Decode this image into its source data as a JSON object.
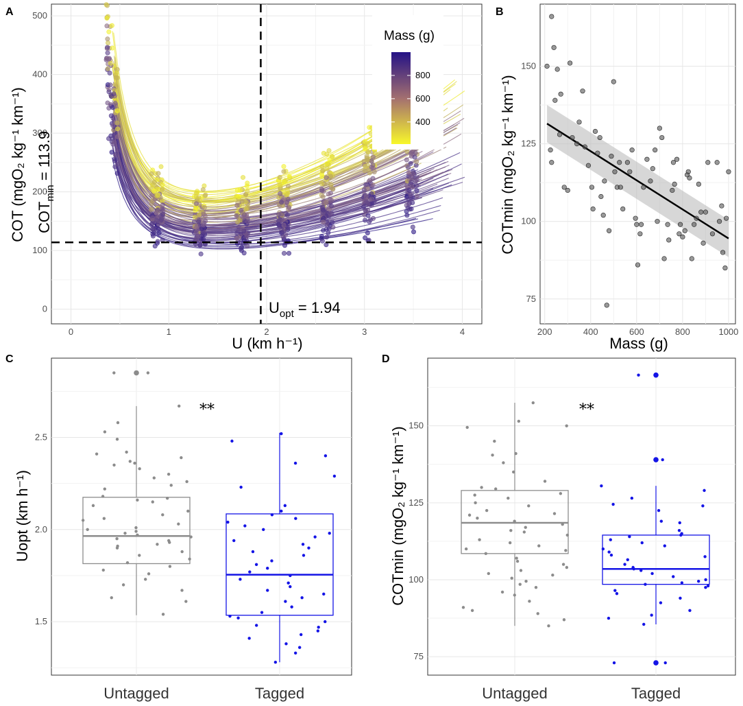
{
  "figure": {
    "panel_letters": [
      "A",
      "B",
      "C",
      "D"
    ]
  },
  "chart_data": [
    {
      "id": "A",
      "type": "scatter",
      "title": "",
      "xlabel": "U (km h⁻¹)",
      "ylabel": "COT (mgO₂ kg⁻¹ km⁻¹)",
      "xlim": [
        -0.2,
        4.2
      ],
      "ylim": [
        -25,
        520
      ],
      "x_ticks": [
        0,
        1,
        2,
        3,
        4
      ],
      "y_ticks": [
        0,
        100,
        200,
        300,
        400,
        500
      ],
      "grid": true,
      "legend": {
        "title": "Mass (g)",
        "ticks": [
          400,
          600,
          800
        ],
        "range": [
          210,
          1000
        ],
        "low_color": "#f8f82a",
        "mid_color": "#8b6a8a",
        "high_color": "#241286",
        "placement": "top-right"
      },
      "speed_levels": [
        0.42,
        0.88,
        1.32,
        1.75,
        2.18,
        2.62,
        3.05,
        3.48
      ],
      "hline": {
        "y": 113.9,
        "label": "COTmin = 113.9"
      },
      "vline": {
        "x": 1.94,
        "label": "Uopt = 1.94"
      },
      "annotations": {
        "cot_main": "COT",
        "cot_sub": "min",
        "cot_value": " = 113.9",
        "u_main": "U",
        "u_sub": "opt",
        "u_value": " = 1.94"
      },
      "n_curves": 90
    },
    {
      "id": "B",
      "type": "scatter",
      "title": "",
      "xlabel": "Mass (g)",
      "ylabel": "COTmin (mgO₂ kg⁻¹ km⁻¹)",
      "xlim": [
        180,
        1030
      ],
      "ylim": [
        67,
        170
      ],
      "x_ticks": [
        200,
        400,
        600,
        800,
        1000
      ],
      "y_ticks": [
        75,
        100,
        125,
        150
      ],
      "grid": true,
      "fit": {
        "x": [
          210,
          1000
        ],
        "y": [
          131.5,
          94.5
        ],
        "se_low": [
          125.5,
          88.5
        ],
        "se_high": [
          137.5,
          100.5
        ]
      },
      "points": [
        [
          210,
          150
        ],
        [
          230,
          166
        ],
        [
          240,
          156
        ],
        [
          255,
          149
        ],
        [
          265,
          128
        ],
        [
          225,
          123
        ],
        [
          230,
          119
        ],
        [
          245,
          139
        ],
        [
          270,
          141
        ],
        [
          285,
          111
        ],
        [
          300,
          110
        ],
        [
          310,
          151
        ],
        [
          320,
          127
        ],
        [
          340,
          125
        ],
        [
          350,
          132
        ],
        [
          365,
          142
        ],
        [
          375,
          124
        ],
        [
          390,
          118
        ],
        [
          405,
          111
        ],
        [
          410,
          104
        ],
        [
          420,
          129
        ],
        [
          430,
          122
        ],
        [
          440,
          127
        ],
        [
          445,
          108
        ],
        [
          455,
          102
        ],
        [
          460,
          113
        ],
        [
          470,
          73
        ],
        [
          480,
          97
        ],
        [
          490,
          121
        ],
        [
          500,
          145
        ],
        [
          505,
          116
        ],
        [
          515,
          111
        ],
        [
          525,
          119
        ],
        [
          530,
          111
        ],
        [
          540,
          104
        ],
        [
          560,
          119
        ],
        [
          570,
          116
        ],
        [
          580,
          123
        ],
        [
          595,
          101
        ],
        [
          600,
          99
        ],
        [
          605,
          86
        ],
        [
          615,
          96
        ],
        [
          620,
          99
        ],
        [
          630,
          111
        ],
        [
          645,
          120
        ],
        [
          660,
          113
        ],
        [
          670,
          117
        ],
        [
          680,
          123
        ],
        [
          690,
          100
        ],
        [
          700,
          130
        ],
        [
          710,
          127
        ],
        [
          720,
          88
        ],
        [
          735,
          99
        ],
        [
          740,
          94
        ],
        [
          755,
          110
        ],
        [
          760,
          119
        ],
        [
          765,
          112
        ],
        [
          775,
          120
        ],
        [
          785,
          96
        ],
        [
          790,
          99
        ],
        [
          800,
          95
        ],
        [
          810,
          97
        ],
        [
          820,
          115
        ],
        [
          825,
          116
        ],
        [
          830,
          114
        ],
        [
          840,
          88
        ],
        [
          850,
          99
        ],
        [
          860,
          101
        ],
        [
          870,
          112
        ],
        [
          880,
          103
        ],
        [
          890,
          93
        ],
        [
          900,
          103
        ],
        [
          910,
          119
        ],
        [
          930,
          96
        ],
        [
          950,
          119
        ],
        [
          960,
          100
        ],
        [
          970,
          105
        ],
        [
          975,
          90
        ],
        [
          985,
          85
        ],
        [
          990,
          101
        ],
        [
          1000,
          116
        ]
      ]
    },
    {
      "id": "C",
      "type": "box",
      "title": "",
      "xlabel": "",
      "ylabel": "Uopt (km h⁻¹)",
      "ylim": [
        1.21,
        2.93
      ],
      "y_ticks": [
        1.5,
        2.0,
        2.5
      ],
      "categories": [
        "Untagged",
        "Tagged"
      ],
      "significance": "**",
      "boxes": [
        {
          "name": "Untagged",
          "color": "#8c8c8c",
          "q1": 1.815,
          "median": 1.965,
          "q3": 2.175,
          "whisker_low": 1.535,
          "whisker_high": 2.67,
          "outliers": [
            2.85
          ]
        },
        {
          "name": "Tagged",
          "color": "#1414e6",
          "q1": 1.535,
          "median": 1.755,
          "q3": 2.085,
          "whisker_low": 1.28,
          "whisker_high": 2.525,
          "outliers": []
        }
      ],
      "points": [
        [
          2.85,
          2.67,
          2.53,
          2.58,
          2.42,
          2.39,
          2.41,
          2.36,
          2.35,
          2.37,
          2.33,
          2.3,
          2.28,
          2.26,
          2.24,
          2.22,
          2.18,
          2.17,
          2.16,
          2.15,
          2.13,
          2.1,
          2.08,
          2.06,
          2.05,
          2.03,
          2.01,
          2.0,
          1.99,
          1.98,
          1.97,
          1.96,
          1.95,
          1.94,
          1.93,
          1.92,
          1.91,
          1.9,
          1.88,
          1.86,
          1.84,
          1.82,
          1.8,
          1.78,
          1.76,
          1.73,
          1.7,
          1.67,
          1.63,
          1.61,
          1.54,
          2.85,
          2.49
        ],
        [
          2.52,
          2.48,
          2.4,
          2.36,
          2.29,
          2.23,
          2.13,
          2.1,
          2.08,
          2.06,
          2.04,
          2.02,
          2.0,
          1.98,
          1.96,
          1.94,
          1.92,
          1.9,
          1.88,
          1.86,
          1.83,
          1.81,
          1.79,
          1.77,
          1.75,
          1.73,
          1.71,
          1.69,
          1.67,
          1.65,
          1.63,
          1.61,
          1.58,
          1.55,
          1.53,
          1.52,
          1.5,
          1.48,
          1.47,
          1.45,
          1.43,
          1.41,
          1.38,
          1.36,
          1.33,
          1.28
        ]
      ]
    },
    {
      "id": "D",
      "type": "box",
      "title": "",
      "xlabel": "",
      "ylabel": "COTmin (mgO₂ kg⁻¹ km⁻¹)",
      "ylim": [
        69,
        172
      ],
      "y_ticks": [
        75,
        100,
        125,
        150
      ],
      "categories": [
        "Untagged",
        "Tagged"
      ],
      "significance": "**",
      "boxes": [
        {
          "name": "Untagged",
          "color": "#8c8c8c",
          "q1": 108.5,
          "median": 118.5,
          "q3": 129.0,
          "whisker_low": 85.0,
          "whisker_high": 157.5,
          "outliers": []
        },
        {
          "name": "Tagged",
          "color": "#1414e6",
          "q1": 98.5,
          "median": 103.5,
          "q3": 114.5,
          "whisker_low": 85.5,
          "whisker_high": 130.5,
          "outliers": [
            166.5,
            139.0,
            73.0
          ]
        }
      ],
      "points": [
        [
          157.5,
          151.5,
          150.0,
          149.5,
          145.0,
          141.0,
          140.5,
          138.0,
          135.0,
          132.0,
          130.0,
          129.5,
          128.0,
          127.5,
          126.5,
          125.0,
          124.0,
          122.5,
          121.5,
          121.0,
          120.0,
          119.0,
          118.0,
          117.0,
          116.0,
          115.5,
          114.5,
          113.0,
          112.0,
          111.0,
          110.0,
          109.5,
          108.5,
          107.0,
          106.0,
          105.0,
          104.0,
          103.0,
          102.0,
          101.5,
          100.5,
          99.5,
          98.5,
          97.5,
          96.0,
          95.0,
          93.0,
          91.0,
          90.0,
          89.0,
          87.0,
          85.0
        ],
        [
          166.5,
          139.0,
          130.5,
          129.0,
          126.5,
          124.5,
          124.0,
          122.5,
          119.0,
          118.5,
          116.0,
          115.0,
          114.5,
          114.0,
          113.0,
          112.0,
          111.0,
          110.0,
          109.0,
          108.0,
          107.5,
          106.5,
          105.0,
          104.0,
          103.5,
          103.0,
          102.0,
          101.0,
          100.0,
          99.5,
          99.0,
          98.5,
          98.0,
          97.5,
          96.5,
          95.5,
          94.0,
          92.5,
          90.0,
          88.5,
          87.5,
          85.5,
          73.0,
          73.0
        ]
      ]
    }
  ]
}
